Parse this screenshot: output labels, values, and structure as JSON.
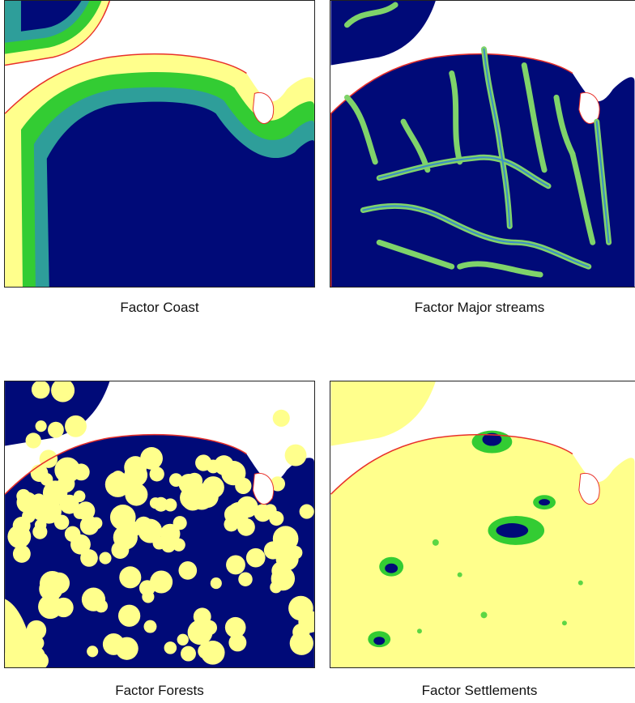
{
  "captions": {
    "coast": "Factor Coast",
    "streams": "Factor Major streams",
    "forests": "Factor Forests",
    "settlements": "Factor Settlements"
  },
  "colors": {
    "navy": "#000a78",
    "yellow": "#ffff8c",
    "green": "#33cc33",
    "teal": "#2e9e9a",
    "coastline": "#e8302a",
    "water": "#ffffff"
  }
}
